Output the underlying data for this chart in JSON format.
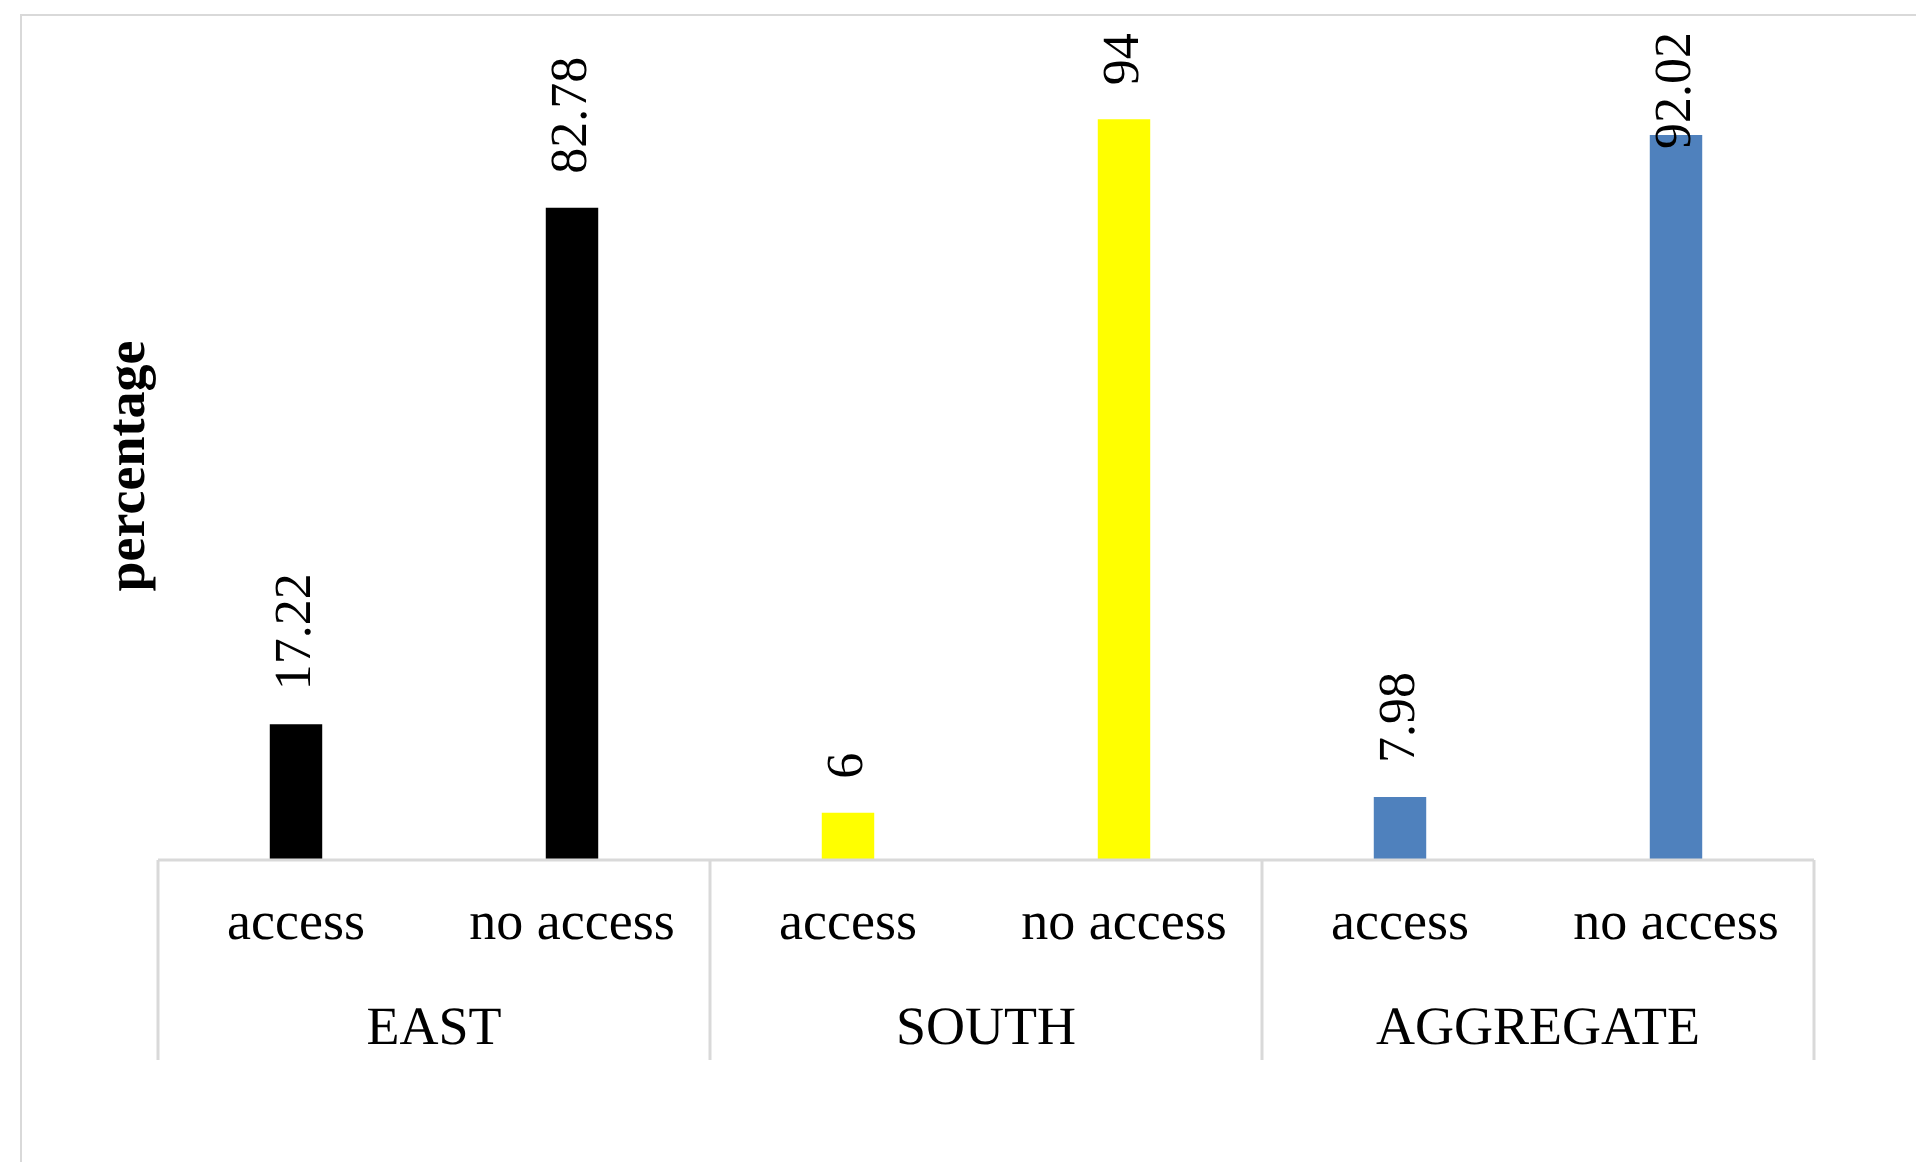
{
  "chart_data": {
    "type": "bar",
    "ylabel": "percentage",
    "categories": [
      "access",
      "no access",
      "access",
      "no access",
      "access",
      "no access"
    ],
    "values": [
      17.22,
      82.78,
      6,
      94,
      7.98,
      92.02
    ],
    "colors": [
      "#000000",
      "#000000",
      "#ffff00",
      "#ffff00",
      "#4f81bd",
      "#4f81bd"
    ],
    "data_labels": true,
    "tick_labels": "x",
    "annotations": [
      "EAST",
      "SOUTH",
      "AGGREGATE"
    ]
  }
}
